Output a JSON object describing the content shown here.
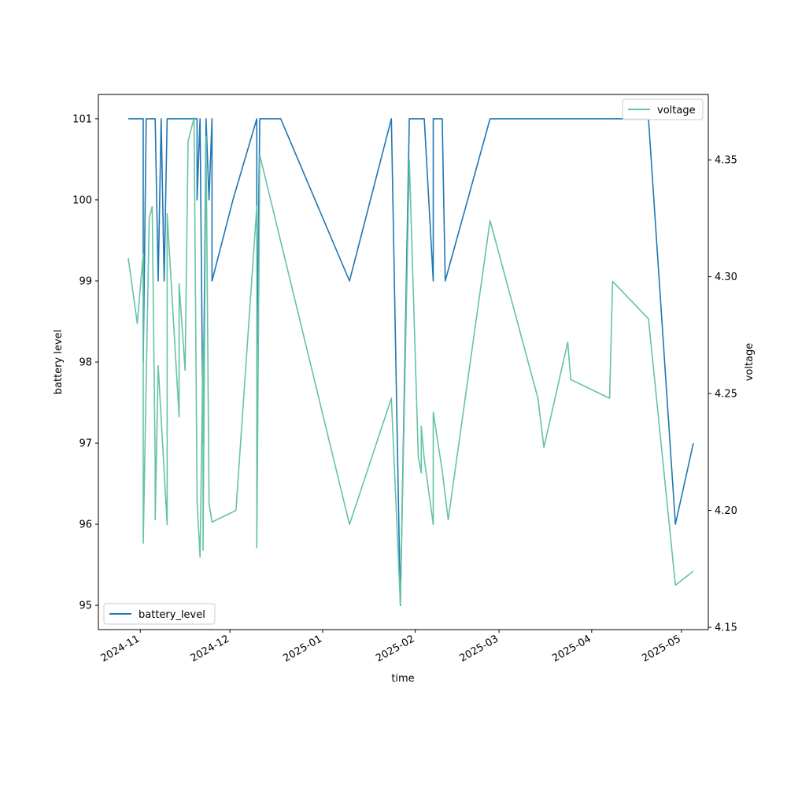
{
  "chart_data": {
    "type": "line",
    "xlabel": "time",
    "x_ticks": [
      "2024-11",
      "2024-12",
      "2025-01",
      "2025-02",
      "2025-03",
      "2025-04",
      "2025-05"
    ],
    "xlim": [
      "2024-10-18",
      "2025-05-10"
    ],
    "left_axis": {
      "label": "battery level",
      "ylim": [
        94.7,
        101.3
      ],
      "ticks": [
        95,
        96,
        97,
        98,
        99,
        100,
        101
      ]
    },
    "right_axis": {
      "label": "voltage",
      "ylim": [
        4.149,
        4.378
      ],
      "ticks": [
        "4.15",
        "4.20",
        "4.25",
        "4.30",
        "4.35"
      ]
    },
    "series": [
      {
        "name": "battery_level",
        "axis": "left",
        "color": "#1f77b4",
        "legend_loc": "lower-left",
        "points": [
          [
            "2024-10-28",
            101
          ],
          [
            "2024-11-02",
            101
          ],
          [
            "2024-11-02",
            98
          ],
          [
            "2024-11-03",
            101
          ],
          [
            "2024-11-06",
            101
          ],
          [
            "2024-11-07",
            99
          ],
          [
            "2024-11-08",
            101
          ],
          [
            "2024-11-09",
            99
          ],
          [
            "2024-11-10",
            101
          ],
          [
            "2024-11-20",
            101
          ],
          [
            "2024-11-20",
            100
          ],
          [
            "2024-11-21",
            101
          ],
          [
            "2024-11-22",
            97
          ],
          [
            "2024-11-23",
            101
          ],
          [
            "2024-11-24",
            100
          ],
          [
            "2024-11-25",
            101
          ],
          [
            "2024-11-25",
            99
          ],
          [
            "2024-12-02",
            100
          ],
          [
            "2024-12-10",
            101
          ],
          [
            "2024-12-10",
            98
          ],
          [
            "2024-12-11",
            101
          ],
          [
            "2024-12-18",
            101
          ],
          [
            "2025-01-10",
            99
          ],
          [
            "2025-01-24",
            101
          ],
          [
            "2025-01-27",
            95
          ],
          [
            "2025-01-30",
            101
          ],
          [
            "2025-02-04",
            101
          ],
          [
            "2025-02-07",
            99
          ],
          [
            "2025-02-07",
            101
          ],
          [
            "2025-02-10",
            101
          ],
          [
            "2025-02-11",
            99
          ],
          [
            "2025-02-26",
            101
          ],
          [
            "2025-04-20",
            101
          ],
          [
            "2025-04-29",
            96
          ],
          [
            "2025-05-05",
            97
          ]
        ]
      },
      {
        "name": "voltage",
        "axis": "right",
        "color": "#66c2a5",
        "legend_loc": "upper-right",
        "points": [
          [
            "2024-10-28",
            4.308
          ],
          [
            "2024-10-31",
            4.28
          ],
          [
            "2024-11-02",
            4.31
          ],
          [
            "2024-11-02",
            4.186
          ],
          [
            "2024-11-04",
            4.325
          ],
          [
            "2024-11-05",
            4.33
          ],
          [
            "2024-11-06",
            4.22
          ],
          [
            "2024-11-06",
            4.196
          ],
          [
            "2024-11-07",
            4.262
          ],
          [
            "2024-11-10",
            4.194
          ],
          [
            "2024-11-10",
            4.327
          ],
          [
            "2024-11-14",
            4.24
          ],
          [
            "2024-11-14",
            4.297
          ],
          [
            "2024-11-16",
            4.26
          ],
          [
            "2024-11-17",
            4.358
          ],
          [
            "2024-11-19",
            4.368
          ],
          [
            "2024-11-20",
            4.206
          ],
          [
            "2024-11-20",
            4.204
          ],
          [
            "2024-11-21",
            4.18
          ],
          [
            "2024-11-22",
            4.27
          ],
          [
            "2024-11-22",
            4.183
          ],
          [
            "2024-11-23",
            4.36
          ],
          [
            "2024-11-24",
            4.205
          ],
          [
            "2024-11-24",
            4.203
          ],
          [
            "2024-11-25",
            4.195
          ],
          [
            "2024-12-03",
            4.2
          ],
          [
            "2024-12-10",
            4.33
          ],
          [
            "2024-12-10",
            4.184
          ],
          [
            "2024-12-11",
            4.352
          ],
          [
            "2025-01-10",
            4.194
          ],
          [
            "2025-01-24",
            4.248
          ],
          [
            "2025-01-27",
            4.16
          ],
          [
            "2025-01-30",
            4.35
          ],
          [
            "2025-02-02",
            4.223
          ],
          [
            "2025-02-03",
            4.216
          ],
          [
            "2025-02-03",
            4.236
          ],
          [
            "2025-02-04",
            4.222
          ],
          [
            "2025-02-07",
            4.194
          ],
          [
            "2025-02-07",
            4.242
          ],
          [
            "2025-02-10",
            4.217
          ],
          [
            "2025-02-12",
            4.196
          ],
          [
            "2025-02-26",
            4.324
          ],
          [
            "2025-03-14",
            4.248
          ],
          [
            "2025-03-16",
            4.227
          ],
          [
            "2025-03-24",
            4.272
          ],
          [
            "2025-03-25",
            4.256
          ],
          [
            "2025-04-07",
            4.248
          ],
          [
            "2025-04-08",
            4.298
          ],
          [
            "2025-04-20",
            4.282
          ],
          [
            "2025-04-29",
            4.168
          ],
          [
            "2025-05-05",
            4.174
          ]
        ]
      }
    ],
    "grid": false
  }
}
